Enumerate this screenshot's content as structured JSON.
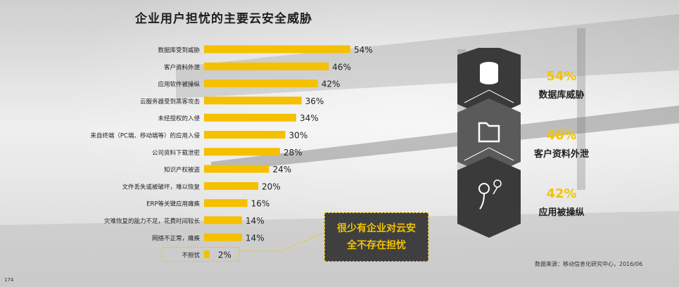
{
  "title": "企业用户担忧的主要云安全威胁",
  "chart_data": {
    "type": "bar",
    "orientation": "horizontal",
    "categories": [
      "数据库受到威胁",
      "客户资料外泄",
      "应用软件被操纵",
      "云服务器受到黑客攻击",
      "未经授权的入侵",
      "来自终端（PC端、移动端等）的应用入侵",
      "公司资料下载泄密",
      "知识产权被盗",
      "文件丢失或被破坏，难以恢复",
      "ERP等关键应用瘫痪",
      "灾难恢复的能力不足，花费时间较长",
      "网络不正常，瘫痪",
      "不担忧"
    ],
    "values": [
      54,
      46,
      42,
      36,
      34,
      30,
      28,
      24,
      20,
      16,
      14,
      14,
      2
    ],
    "value_labels": [
      "54%",
      "46%",
      "42%",
      "36%",
      "34%",
      "30%",
      "28%",
      "24%",
      "20%",
      "16%",
      "14%",
      "14%",
      "2%"
    ],
    "xlim": [
      0,
      54
    ],
    "grid": false,
    "bar_color": "#f5c000",
    "highlight_last": true
  },
  "highlights": [
    {
      "value": "54%",
      "label": "数据库威胁",
      "icon": "database-icon"
    },
    {
      "value": "46%",
      "label": "客户资料外泄",
      "icon": "folder-icon"
    },
    {
      "value": "42%",
      "label": "应用被操纵",
      "icon": "app-hook-icon"
    }
  ],
  "callout": {
    "line1": "很少有企业对云安",
    "line2": "全不存在担忧"
  },
  "source": "数据来源：移动信息化研究中心，2016/06",
  "page_number": "174",
  "colors": {
    "accent": "#f2c400",
    "dark": "#3f3f3f",
    "darker": "#2e2e2e"
  }
}
